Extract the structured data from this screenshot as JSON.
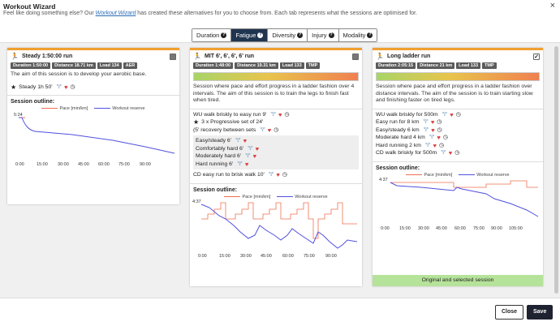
{
  "header": {
    "title": "Workout Wizard",
    "close_glyph": "×",
    "intro_pre": "Feel like doing something else? Our ",
    "intro_link": "Workout Wizard",
    "intro_post": " has created these alternatives for you to choose from. Each tab represents what the sessions are optimised for."
  },
  "tabs": [
    {
      "label": "Duration",
      "active": false
    },
    {
      "label": "Fatigue",
      "active": true
    },
    {
      "label": "Diversity",
      "active": false
    },
    {
      "label": "Injury",
      "active": false
    },
    {
      "label": "Modality",
      "active": false
    }
  ],
  "cards": [
    {
      "title": "Steady 1:50:00 run",
      "checked": false,
      "badges": [
        "Duration 1:50:00",
        "Distance 18.71 km",
        "Load 134",
        "AER"
      ],
      "description": "The aim of this session is to develop your aerobic base.",
      "steps": [
        {
          "text": "Steady 1h 50'",
          "star": true
        }
      ],
      "outline_label": "Session outline:",
      "legend_pace": "Pace [min/km]",
      "legend_reserve": "Workout reserve",
      "pace_label": "5:24",
      "x_ticks": [
        "0:00",
        "15:00",
        "30:00",
        "45:00",
        "60:00",
        "75:00",
        "90:00"
      ]
    },
    {
      "title": "MIT 6', 6', 6', 6' run",
      "checked": false,
      "badges": [
        "Duration 1:48:00",
        "Distance 19.31 km",
        "Load 133",
        "TMP"
      ],
      "description": "Session where pace and effort progress in a ladder fashion over 4 intervals. The aim of this session is to train the legs to finish fast when tired.",
      "steps_top": [
        {
          "text": "WU walk briskly to easy run 9'"
        },
        {
          "text": "3 x Progressive set of 24'",
          "star": true
        },
        {
          "text": "(5' recovery between sets"
        }
      ],
      "group": [
        "Easy/steady 6'",
        "Comfortably hard 6'",
        "Moderately hard 6'",
        "Hard running 6'"
      ],
      "steps_bottom": [
        {
          "text": "CD easy run to brisk walk 10'"
        }
      ],
      "outline_label": "Session outline:",
      "legend_pace": "Pace [min/km]",
      "legend_reserve": "Workout reserve",
      "pace_label": "4:37",
      "x_ticks": [
        "0:00",
        "15:00",
        "30:00",
        "45:00",
        "60:00",
        "75:00",
        "90:00"
      ]
    },
    {
      "title": "Long ladder run",
      "checked": true,
      "check_glyph": "✓",
      "badges": [
        "Duration 2:05:15",
        "Distance 21 km",
        "Load 133",
        "TMP"
      ],
      "description": "Session where pace and effort progress in a ladder fashion over distance intervals. The aim of the session is to train starting slow and finishing faster on tired legs.",
      "steps": [
        {
          "text": "WU walk briskly for 500m"
        },
        {
          "text": "Easy run for 8 km"
        },
        {
          "text": "Easy/steady 6 km"
        },
        {
          "text": "Moderate hard 4 km"
        },
        {
          "text": "Hard running 2 km"
        },
        {
          "text": "CD walk briskly for 500m"
        }
      ],
      "outline_label": "Session outline:",
      "legend_pace": "Pace [min/km]",
      "legend_reserve": "Workout reserve",
      "pace_label": "4:37",
      "x_ticks": [
        "0:00",
        "15:00",
        "30:00",
        "45:00",
        "60:00",
        "75:00",
        "90:00",
        "105:00"
      ],
      "footer": "Original and selected session"
    }
  ],
  "footer": {
    "close_label": "Close",
    "save_label": "Save"
  },
  "icons": {
    "runner": "runner-icon",
    "bottle": "bottle-icon",
    "heart": "heart-icon",
    "clock": "clock-icon",
    "star": "star-icon",
    "help": "help-icon"
  },
  "colors": {
    "accent": "#f0a030",
    "tab_active": "#1f3550",
    "pace_line": "#f07050",
    "reserve_line": "#5050e0",
    "selected_footer": "#b6e39a"
  }
}
